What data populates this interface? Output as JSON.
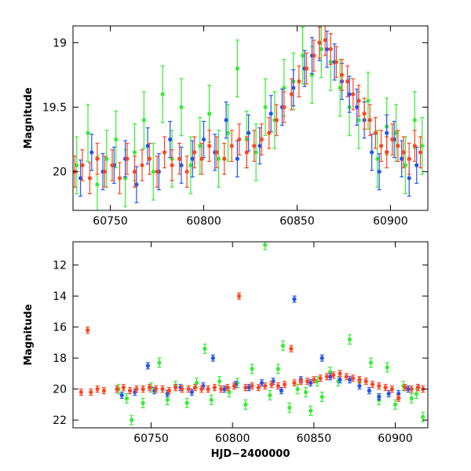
{
  "chart_data": [
    {
      "type": "scatter",
      "panel": "top",
      "xlabel": "",
      "ylabel": "Magnitude",
      "xlim": [
        60730,
        60920
      ],
      "ylim": [
        20.3,
        18.87
      ],
      "y_inverted": true,
      "x_ticks": [
        60750,
        60800,
        60850,
        60900
      ],
      "x_tick_labels": [
        "60750",
        "60800",
        "60850",
        "60900"
      ],
      "y_ticks": [
        19,
        19.5,
        20
      ],
      "y_tick_labels": [
        "19",
        "19.5",
        "20"
      ],
      "series": [
        {
          "color": "#33ee33",
          "error": 0.22,
          "points": [
            [
              60732,
              19.95
            ],
            [
              60738,
              19.7
            ],
            [
              60743,
              20.1
            ],
            [
              60748,
              19.9
            ],
            [
              60753,
              19.75
            ],
            [
              60758,
              20.05
            ],
            [
              60763,
              19.85
            ],
            [
              60768,
              19.6
            ],
            [
              60773,
              20.0
            ],
            [
              60778,
              19.4
            ],
            [
              60783,
              19.9
            ],
            [
              60788,
              19.5
            ],
            [
              60793,
              19.95
            ],
            [
              60798,
              19.8
            ],
            [
              60803,
              19.55
            ],
            [
              60808,
              19.9
            ],
            [
              60813,
              19.7
            ],
            [
              60818,
              19.2
            ],
            [
              60823,
              19.75
            ],
            [
              60828,
              19.85
            ],
            [
              60833,
              19.5
            ],
            [
              60838,
              19.6
            ],
            [
              60843,
              19.35
            ],
            [
              60848,
              19.3
            ],
            [
              60853,
              19.1
            ],
            [
              60858,
              19.25
            ],
            [
              60863,
              19.05
            ],
            [
              60868,
              19.15
            ],
            [
              60873,
              19.35
            ],
            [
              60878,
              19.5
            ],
            [
              60883,
              19.6
            ],
            [
              60888,
              19.45
            ],
            [
              60893,
              19.9
            ],
            [
              60898,
              19.65
            ],
            [
              60903,
              19.7
            ],
            [
              60908,
              19.95
            ],
            [
              60913,
              19.6
            ],
            [
              60917,
              19.8
            ]
          ]
        },
        {
          "color": "#2255ee",
          "error": 0.14,
          "points": [
            [
              60734,
              20.05
            ],
            [
              60740,
              19.85
            ],
            [
              60746,
              20.0
            ],
            [
              60752,
              19.95
            ],
            [
              60758,
              19.9
            ],
            [
              60764,
              20.1
            ],
            [
              60770,
              19.8
            ],
            [
              60776,
              20.0
            ],
            [
              60782,
              19.75
            ],
            [
              60788,
              19.95
            ],
            [
              60794,
              19.9
            ],
            [
              60800,
              19.75
            ],
            [
              60806,
              19.85
            ],
            [
              60812,
              19.6
            ],
            [
              60818,
              19.9
            ],
            [
              60824,
              19.7
            ],
            [
              60830,
              19.8
            ],
            [
              60836,
              19.55
            ],
            [
              60842,
              19.5
            ],
            [
              60848,
              19.35
            ],
            [
              60854,
              19.2
            ],
            [
              60858,
              19.1
            ],
            [
              60862,
              19.0
            ],
            [
              60866,
              19.05
            ],
            [
              60870,
              19.15
            ],
            [
              60874,
              19.3
            ],
            [
              60878,
              19.4
            ],
            [
              60882,
              19.5
            ],
            [
              60886,
              19.6
            ],
            [
              60890,
              19.85
            ],
            [
              60894,
              20.0
            ],
            [
              60898,
              19.7
            ],
            [
              60902,
              19.75
            ],
            [
              60906,
              19.9
            ],
            [
              60910,
              20.05
            ],
            [
              60914,
              19.95
            ]
          ]
        },
        {
          "color": "#ff4422",
          "error": 0.12,
          "points": [
            [
              60731,
              20.0
            ],
            [
              60735,
              19.95
            ],
            [
              60739,
              20.05
            ],
            [
              60743,
              19.9
            ],
            [
              60747,
              20.0
            ],
            [
              60751,
              19.95
            ],
            [
              60755,
              20.05
            ],
            [
              60759,
              19.9
            ],
            [
              60763,
              20.0
            ],
            [
              60767,
              19.95
            ],
            [
              60771,
              19.9
            ],
            [
              60775,
              20.0
            ],
            [
              60779,
              19.85
            ],
            [
              60783,
              19.95
            ],
            [
              60787,
              19.9
            ],
            [
              60791,
              20.0
            ],
            [
              60795,
              19.85
            ],
            [
              60799,
              19.9
            ],
            [
              60803,
              19.8
            ],
            [
              60807,
              19.85
            ],
            [
              60811,
              19.9
            ],
            [
              60815,
              19.8
            ],
            [
              60819,
              19.75
            ],
            [
              60823,
              19.85
            ],
            [
              60827,
              19.8
            ],
            [
              60831,
              19.75
            ],
            [
              60835,
              19.7
            ],
            [
              60839,
              19.6
            ],
            [
              60843,
              19.5
            ],
            [
              60847,
              19.4
            ],
            [
              60851,
              19.3
            ],
            [
              60855,
              19.2
            ],
            [
              60859,
              19.1
            ],
            [
              60862,
              19.0
            ],
            [
              60865,
              18.98
            ],
            [
              60868,
              19.05
            ],
            [
              60871,
              19.15
            ],
            [
              60874,
              19.25
            ],
            [
              60877,
              19.3
            ],
            [
              60880,
              19.4
            ],
            [
              60883,
              19.45
            ],
            [
              60886,
              19.55
            ],
            [
              60889,
              19.6
            ],
            [
              60892,
              19.7
            ],
            [
              60895,
              19.8
            ],
            [
              60898,
              19.85
            ],
            [
              60901,
              19.75
            ],
            [
              60904,
              19.8
            ],
            [
              60907,
              19.85
            ],
            [
              60910,
              19.9
            ],
            [
              60913,
              19.8
            ],
            [
              60916,
              19.85
            ]
          ]
        }
      ]
    },
    {
      "type": "scatter",
      "panel": "bottom",
      "xlabel": "HJD−2400000",
      "ylabel": "Magnitude",
      "xlim": [
        60702,
        60920
      ],
      "ylim": [
        22.5,
        10.5
      ],
      "y_inverted": true,
      "x_ticks": [
        60750,
        60800,
        60850,
        60900
      ],
      "x_tick_labels": [
        "60750",
        "60800",
        "60850",
        "60900"
      ],
      "y_ticks": [
        12,
        14,
        16,
        18,
        20,
        22
      ],
      "y_tick_labels": [
        "12",
        "14",
        "16",
        "18",
        "20",
        "22"
      ],
      "series": [
        {
          "color": "#33ee33",
          "error": 0.3,
          "points": [
            [
              60730,
              20.0
            ],
            [
              60735,
              20.6
            ],
            [
              60738,
              22.0
            ],
            [
              60745,
              20.9
            ],
            [
              60750,
              19.9
            ],
            [
              60755,
              18.3
            ],
            [
              60760,
              20.7
            ],
            [
              60765,
              19.8
            ],
            [
              60772,
              20.9
            ],
            [
              60778,
              19.6
            ],
            [
              60783,
              17.4
            ],
            [
              60787,
              20.7
            ],
            [
              60792,
              19.5
            ],
            [
              60798,
              20.2
            ],
            [
              60803,
              19.6
            ],
            [
              60808,
              21.0
            ],
            [
              60812,
              18.7
            ],
            [
              60820,
              10.7
            ],
            [
              60823,
              20.4
            ],
            [
              60828,
              18.7
            ],
            [
              60831,
              17.2
            ],
            [
              60835,
              21.2
            ],
            [
              60840,
              20.0
            ],
            [
              60845,
              20.2
            ],
            [
              60848,
              21.4
            ],
            [
              60852,
              19.5
            ],
            [
              60855,
              20.5
            ],
            [
              60860,
              18.9
            ],
            [
              60865,
              19.5
            ],
            [
              60872,
              16.8
            ],
            [
              60878,
              19.5
            ],
            [
              60885,
              18.3
            ],
            [
              60890,
              20.7
            ],
            [
              60895,
              18.6
            ],
            [
              60900,
              21.0
            ],
            [
              60905,
              19.8
            ],
            [
              60910,
              20.6
            ],
            [
              60913,
              20.3
            ],
            [
              60917,
              21.8
            ]
          ]
        },
        {
          "color": "#2255ee",
          "error": 0.2,
          "points": [
            [
              60732,
              20.4
            ],
            [
              60740,
              20.2
            ],
            [
              60748,
              18.5
            ],
            [
              60752,
              20.1
            ],
            [
              60760,
              20.3
            ],
            [
              60768,
              19.9
            ],
            [
              60775,
              20.2
            ],
            [
              60782,
              19.8
            ],
            [
              60788,
              18.0
            ],
            [
              60795,
              20.0
            ],
            [
              60802,
              19.7
            ],
            [
              60810,
              19.9
            ],
            [
              60818,
              19.6
            ],
            [
              60825,
              19.5
            ],
            [
              60830,
              20.1
            ],
            [
              60838,
              14.2
            ],
            [
              60842,
              19.4
            ],
            [
              60848,
              19.6
            ],
            [
              60855,
              18.0
            ],
            [
              60860,
              19.2
            ],
            [
              60866,
              19.4
            ],
            [
              60872,
              19.4
            ],
            [
              60878,
              19.8
            ],
            [
              60884,
              20.1
            ],
            [
              60890,
              20.5
            ],
            [
              60896,
              20.3
            ],
            [
              60902,
              20.3
            ],
            [
              60908,
              20.0
            ],
            [
              60914,
              19.9
            ]
          ]
        },
        {
          "color": "#ff4422",
          "error": 0.2,
          "points": [
            [
              60707,
              20.2
            ],
            [
              60711,
              16.2
            ],
            [
              60713,
              20.2
            ],
            [
              60717,
              20.0
            ],
            [
              60721,
              20.1
            ],
            [
              60729,
              20.0
            ],
            [
              60733,
              19.9
            ],
            [
              60737,
              20.1
            ],
            [
              60741,
              20.0
            ],
            [
              60745,
              20.0
            ],
            [
              60749,
              19.9
            ],
            [
              60753,
              20.0
            ],
            [
              60757,
              20.0
            ],
            [
              60761,
              20.1
            ],
            [
              60765,
              19.9
            ],
            [
              60769,
              20.0
            ],
            [
              60773,
              20.0
            ],
            [
              60777,
              19.9
            ],
            [
              60781,
              20.0
            ],
            [
              60785,
              20.0
            ],
            [
              60789,
              19.9
            ],
            [
              60793,
              20.0
            ],
            [
              60797,
              19.9
            ],
            [
              60801,
              19.8
            ],
            [
              60804,
              14.0
            ],
            [
              60808,
              19.9
            ],
            [
              60812,
              19.8
            ],
            [
              60816,
              19.9
            ],
            [
              60820,
              19.8
            ],
            [
              60824,
              19.7
            ],
            [
              60828,
              19.8
            ],
            [
              60832,
              19.7
            ],
            [
              60836,
              17.4
            ],
            [
              60838,
              19.6
            ],
            [
              60842,
              19.5
            ],
            [
              60846,
              19.5
            ],
            [
              60850,
              19.4
            ],
            [
              60854,
              19.3
            ],
            [
              60858,
              19.2
            ],
            [
              60862,
              19.1
            ],
            [
              60866,
              19.0
            ],
            [
              60870,
              19.2
            ],
            [
              60874,
              19.3
            ],
            [
              60878,
              19.4
            ],
            [
              60882,
              19.5
            ],
            [
              60886,
              19.7
            ],
            [
              60890,
              19.8
            ],
            [
              60894,
              19.9
            ],
            [
              60898,
              20.0
            ],
            [
              60902,
              20.6
            ],
            [
              60906,
              19.9
            ],
            [
              60910,
              20.0
            ],
            [
              60914,
              19.9
            ],
            [
              60917,
              20.0
            ]
          ]
        }
      ]
    }
  ]
}
